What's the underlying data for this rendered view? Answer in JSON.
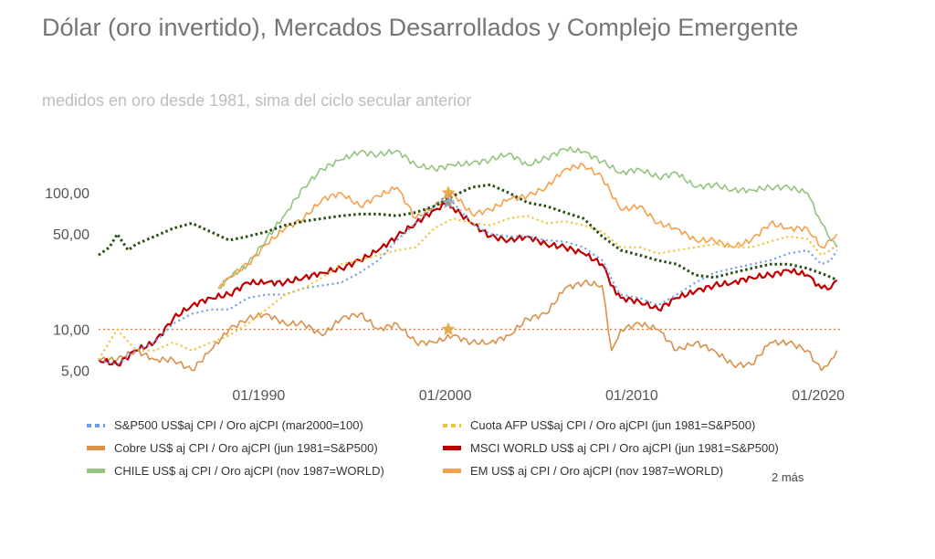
{
  "title": "Dólar (oro invertido), Mercados Desarrollados y Complejo Emergente",
  "subtitle": "medidos en oro desde 1981, sima del ciclo secular anterior",
  "more_label": "2 más",
  "chart_data": {
    "type": "line",
    "y_scale": "log",
    "ylim": [
      4,
      300
    ],
    "xlim": [
      "1981-06",
      "2021-03"
    ],
    "y_ticks": [
      5,
      10,
      50,
      100
    ],
    "y_tick_labels": [
      "5,00",
      "10,00",
      "50,00",
      "100,00"
    ],
    "x_ticks": [
      "1990-01",
      "2000-01",
      "2010-01",
      "2020-01"
    ],
    "x_tick_labels": [
      "01/1990",
      "01/2000",
      "01/2010",
      "01/2020"
    ],
    "reference_line": {
      "y": 10,
      "color": "#e67c3a"
    },
    "markers": [
      {
        "x": "2000-03",
        "y": 10,
        "shape": "star",
        "color": "#e6a23c"
      },
      {
        "x": "2000-03",
        "y": 100,
        "shape": "star",
        "color": "#e6a23c"
      },
      {
        "x": "2000-03",
        "y": 85,
        "shape": "star",
        "color": "#9e9e9e"
      }
    ],
    "series": [
      {
        "name": "CHILE US$ aj CPI / Oro ajCPI (nov 1987=WORLD)",
        "color": "#93c47d",
        "style": "solid",
        "x": [
          "1987-11",
          "1988-06",
          "1989-06",
          "1990-06",
          "1991-06",
          "1992-06",
          "1993-06",
          "1994-06",
          "1995-06",
          "1996-06",
          "1997-06",
          "1998-06",
          "1999-06",
          "2000-06",
          "2001-06",
          "2002-06",
          "2003-06",
          "2004-06",
          "2005-06",
          "2006-06",
          "2007-06",
          "2008-06",
          "2009-06",
          "2010-06",
          "2011-06",
          "2012-06",
          "2013-06",
          "2014-06",
          "2015-06",
          "2016-06",
          "2017-06",
          "2018-06",
          "2019-06",
          "2020-03",
          "2020-09",
          "2021-01"
        ],
        "y": [
          20,
          24,
          30,
          46,
          70,
          110,
          150,
          175,
          200,
          190,
          205,
          160,
          150,
          160,
          165,
          175,
          195,
          160,
          180,
          210,
          200,
          170,
          140,
          150,
          130,
          140,
          110,
          115,
          105,
          105,
          110,
          110,
          100,
          60,
          45,
          40
        ]
      },
      {
        "name": "EM US$ aj CPI / Oro ajCPI (nov 1987=WORLD)",
        "color": "#f6a04d",
        "style": "solid",
        "x": [
          "1987-11",
          "1988-06",
          "1989-06",
          "1990-06",
          "1991-06",
          "1992-06",
          "1993-06",
          "1994-06",
          "1995-06",
          "1996-06",
          "1997-06",
          "1998-06",
          "1999-06",
          "2000-06",
          "2001-06",
          "2002-06",
          "2003-06",
          "2004-06",
          "2005-06",
          "2006-06",
          "2007-06",
          "2008-06",
          "2009-06",
          "2010-06",
          "2011-06",
          "2012-06",
          "2013-06",
          "2014-06",
          "2015-06",
          "2016-06",
          "2017-06",
          "2018-06",
          "2019-06",
          "2020-03",
          "2020-09",
          "2021-01"
        ],
        "y": [
          20,
          24,
          30,
          42,
          55,
          65,
          90,
          100,
          80,
          95,
          110,
          65,
          80,
          100,
          70,
          75,
          90,
          95,
          110,
          150,
          160,
          130,
          75,
          80,
          60,
          55,
          45,
          45,
          40,
          45,
          60,
          55,
          55,
          40,
          45,
          50
        ]
      },
      {
        "name": "Cobre US$ aj CPI / Oro ajCPI (jun 1981=S&P500)",
        "color": "#d9914a",
        "style": "solid",
        "x": [
          "1981-06",
          "1982-06",
          "1983-06",
          "1984-06",
          "1985-06",
          "1986-06",
          "1987-06",
          "1988-06",
          "1989-06",
          "1990-06",
          "1991-06",
          "1992-06",
          "1993-06",
          "1994-06",
          "1995-06",
          "1996-06",
          "1997-06",
          "1998-06",
          "1999-06",
          "2000-06",
          "2001-06",
          "2002-06",
          "2003-06",
          "2004-06",
          "2005-06",
          "2006-06",
          "2007-06",
          "2008-06",
          "2008-12",
          "2009-06",
          "2010-06",
          "2011-06",
          "2012-06",
          "2013-06",
          "2014-06",
          "2015-06",
          "2016-06",
          "2017-06",
          "2018-06",
          "2019-06",
          "2020-03",
          "2020-09",
          "2021-01"
        ],
        "y": [
          6,
          6,
          7,
          6,
          6,
          5,
          7,
          10,
          12,
          13,
          11,
          11,
          9,
          12,
          13,
          10,
          11,
          8,
          8,
          9,
          8,
          8,
          9,
          12,
          13,
          20,
          22,
          21,
          7,
          10,
          11,
          10,
          7,
          8,
          7,
          5.5,
          5.5,
          8,
          8,
          7,
          5,
          6,
          7
        ]
      },
      {
        "name": "MSCI WORLD US$ aj CPI / Oro ajCPI (jun 1981=S&P500)",
        "color": "#c00000",
        "style": "solid",
        "x": [
          "1981-06",
          "1982-06",
          "1983-06",
          "1984-06",
          "1985-06",
          "1986-06",
          "1987-06",
          "1988-06",
          "1989-06",
          "1990-06",
          "1991-06",
          "1992-06",
          "1993-06",
          "1994-06",
          "1995-06",
          "1996-06",
          "1997-06",
          "1998-06",
          "1999-06",
          "2000-03",
          "2000-06",
          "2001-06",
          "2002-06",
          "2003-06",
          "2004-06",
          "2005-06",
          "2006-06",
          "2007-06",
          "2008-06",
          "2009-03",
          "2009-06",
          "2010-06",
          "2011-06",
          "2012-06",
          "2013-06",
          "2014-06",
          "2015-06",
          "2016-06",
          "2017-06",
          "2018-06",
          "2019-06",
          "2020-03",
          "2020-09",
          "2021-01"
        ],
        "y": [
          6,
          5.5,
          7,
          8,
          12,
          15,
          17,
          18,
          22,
          22,
          22,
          24,
          26,
          28,
          32,
          38,
          48,
          60,
          75,
          85,
          78,
          60,
          48,
          45,
          48,
          42,
          40,
          36,
          30,
          18,
          17,
          16,
          14,
          17,
          19,
          21,
          22,
          24,
          25,
          27,
          25,
          20,
          20,
          23
        ]
      },
      {
        "name": "S&P500 US$aj CPI / Oro ajCPI (mar2000=100)",
        "color": "#6d9eeb",
        "style": "dotted",
        "x": [
          "1981-06",
          "1982-06",
          "1983-06",
          "1984-06",
          "1985-06",
          "1986-06",
          "1987-06",
          "1988-06",
          "1989-06",
          "1990-06",
          "1991-06",
          "1992-06",
          "1993-06",
          "1994-06",
          "1995-06",
          "1996-06",
          "1997-06",
          "1998-06",
          "1999-06",
          "2000-03",
          "2000-06",
          "2001-06",
          "2002-06",
          "2003-06",
          "2004-06",
          "2005-06",
          "2006-06",
          "2007-06",
          "2008-06",
          "2009-03",
          "2009-06",
          "2010-06",
          "2011-06",
          "2012-06",
          "2013-06",
          "2014-06",
          "2015-06",
          "2016-06",
          "2017-06",
          "2018-06",
          "2019-06",
          "2020-03",
          "2020-09",
          "2021-01"
        ],
        "y": [
          6,
          5.5,
          7,
          8,
          11,
          13,
          14,
          14,
          17,
          18,
          18,
          20,
          21,
          22,
          26,
          32,
          45,
          60,
          80,
          100,
          85,
          60,
          50,
          48,
          48,
          45,
          44,
          40,
          32,
          20,
          18,
          17,
          15,
          18,
          22,
          26,
          28,
          30,
          32,
          36,
          38,
          30,
          32,
          38
        ]
      },
      {
        "name": "Cuota AFP US$aj CPI / Oro ajCPI (jun 1981=S&P500)",
        "color": "#f1c232",
        "style": "dotted",
        "x": [
          "1981-06",
          "1982-06",
          "1983-06",
          "1984-06",
          "1985-06",
          "1986-06",
          "1987-06",
          "1988-06",
          "1989-06",
          "1990-06",
          "1991-06",
          "1992-06",
          "1993-06",
          "1994-06",
          "1995-06",
          "1996-06",
          "1997-06",
          "1998-06",
          "1999-06",
          "2000-06",
          "2001-06",
          "2002-06",
          "2003-06",
          "2004-06",
          "2005-06",
          "2006-06",
          "2007-06",
          "2008-06",
          "2009-06",
          "2010-06",
          "2011-06",
          "2012-06",
          "2013-06",
          "2014-06",
          "2015-06",
          "2016-06",
          "2017-06",
          "2018-06",
          "2019-06",
          "2020-03",
          "2020-09",
          "2021-01"
        ],
        "y": [
          6,
          10,
          7,
          7,
          8,
          7,
          8,
          9,
          11,
          14,
          18,
          20,
          24,
          30,
          32,
          35,
          38,
          40,
          55,
          65,
          60,
          58,
          65,
          68,
          60,
          62,
          58,
          52,
          40,
          40,
          36,
          38,
          40,
          42,
          40,
          40,
          44,
          48,
          46,
          35,
          38,
          42
        ]
      },
      {
        "name": "",
        "color": "#274e13",
        "style": "dotted",
        "x": [
          "1981-06",
          "1982-01",
          "1982-06",
          "1983-01",
          "1983-06",
          "1984-06",
          "1985-06",
          "1986-06",
          "1987-06",
          "1988-06",
          "1989-06",
          "1990-06",
          "1991-06",
          "1992-06",
          "1993-06",
          "1994-06",
          "1995-06",
          "1996-06",
          "1997-06",
          "1998-06",
          "1999-06",
          "2000-06",
          "2001-06",
          "2002-06",
          "2003-06",
          "2004-06",
          "2005-06",
          "2006-06",
          "2007-06",
          "2008-06",
          "2009-06",
          "2010-06",
          "2011-06",
          "2012-06",
          "2013-06",
          "2014-06",
          "2015-06",
          "2016-06",
          "2017-06",
          "2018-06",
          "2019-06",
          "2020-06",
          "2021-01"
        ],
        "y": [
          35,
          40,
          50,
          38,
          42,
          48,
          55,
          60,
          52,
          45,
          48,
          52,
          58,
          62,
          65,
          68,
          70,
          70,
          68,
          72,
          80,
          95,
          110,
          115,
          100,
          85,
          80,
          72,
          65,
          48,
          38,
          35,
          32,
          30,
          25,
          24,
          26,
          28,
          30,
          30,
          28,
          25,
          23
        ]
      }
    ]
  },
  "legend": [
    {
      "label": "S&P500 US$aj CPI / Oro ajCPI (mar2000=100)",
      "color": "#6d9eeb",
      "style": "dotted"
    },
    {
      "label": "Cuota AFP US$aj CPI / Oro ajCPI (jun 1981=S&P500)",
      "color": "#f1c232",
      "style": "dotted"
    },
    {
      "label": "Cobre US$ aj CPI / Oro ajCPI (jun 1981=S&P500)",
      "color": "#d9914a",
      "style": "solid"
    },
    {
      "label": "MSCI WORLD US$ aj CPI / Oro ajCPI (jun 1981=S&P500)",
      "color": "#c00000",
      "style": "solid"
    },
    {
      "label": "CHILE US$ aj CPI / Oro ajCPI (nov 1987=WORLD)",
      "color": "#93c47d",
      "style": "solid"
    },
    {
      "label": "EM US$ aj CPI / Oro ajCPI (nov 1987=WORLD)",
      "color": "#f6a04d",
      "style": "solid"
    }
  ]
}
